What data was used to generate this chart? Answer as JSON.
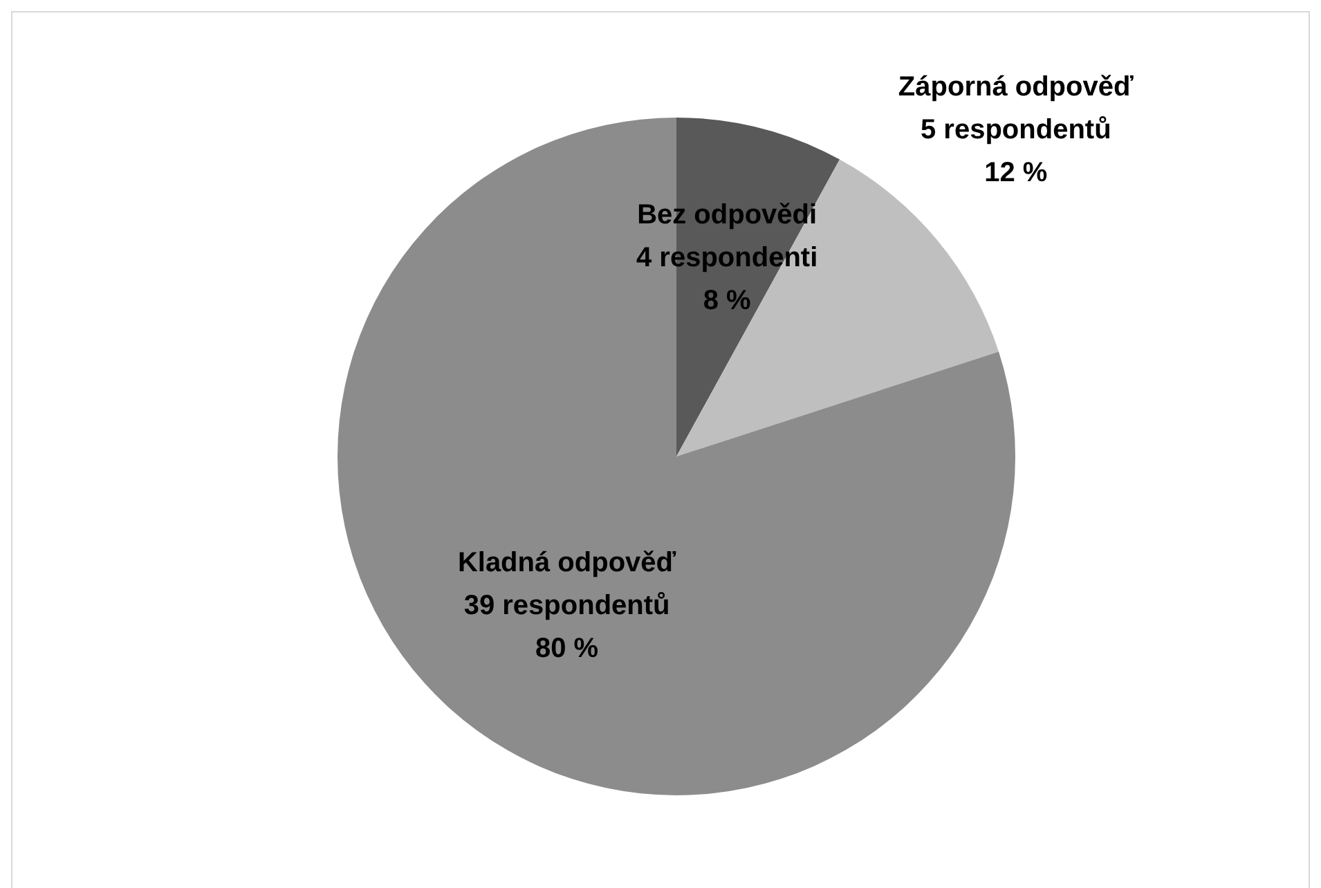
{
  "chart_data": {
    "type": "pie",
    "categories": [
      "Bez odpovědi",
      "Záporná odpověď",
      "Kladná odpověď"
    ],
    "values": [
      8,
      12,
      80
    ],
    "colors": [
      "#595959",
      "#bfbfbf",
      "#8c8c8c"
    ],
    "value_labels": [
      "4 respondenti\n8 %",
      "5 respondentů\n12 %",
      "39 respondentů\n80 %"
    ]
  }
}
